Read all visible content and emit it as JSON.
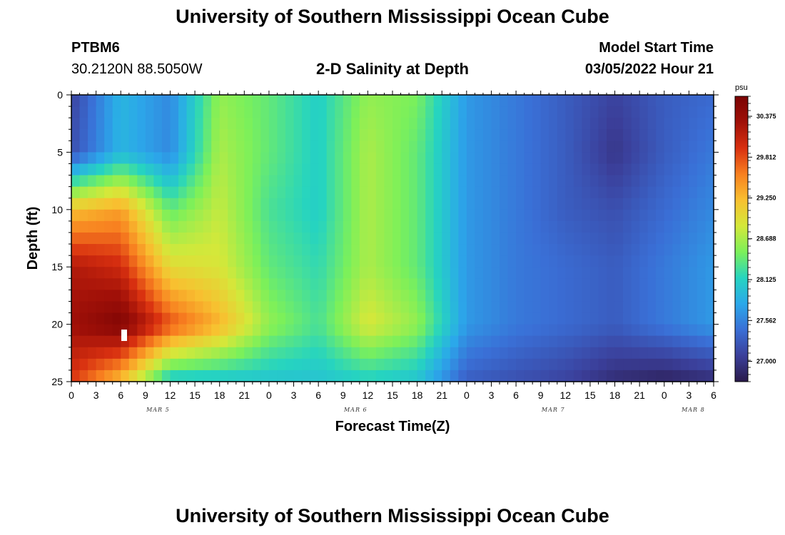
{
  "header": {
    "title": "University of Southern Mississippi Ocean Cube",
    "station": "PTBM6",
    "coords": "30.2120N  88.5050W",
    "plot_title": "2-D Salinity at Depth",
    "start_label": "Model Start Time",
    "start_value": "03/05/2022 Hour 21"
  },
  "footer": {
    "title": "University of Southern Mississippi Ocean Cube"
  },
  "chart_data": {
    "type": "heatmap",
    "title": "2-D Salinity at Depth",
    "xlabel": "Forecast Time(Z)",
    "ylabel": "Depth (ft)",
    "x_range_hours": [
      0,
      78
    ],
    "x_tick_labels": [
      "0",
      "3",
      "6",
      "9",
      "12",
      "15",
      "18",
      "21",
      "0",
      "3",
      "6",
      "9",
      "12",
      "15",
      "18",
      "21",
      "0",
      "3",
      "6",
      "9",
      "12",
      "15",
      "18",
      "21",
      "0",
      "3",
      "6"
    ],
    "date_labels": [
      {
        "text": "MAR 5",
        "hour": 10
      },
      {
        "text": "MAR 6",
        "hour": 34
      },
      {
        "text": "MAR 7",
        "hour": 58
      },
      {
        "text": "MAR 8",
        "hour": 75
      }
    ],
    "y_range_ft": [
      0,
      25
    ],
    "y_tick_labels": [
      "0",
      "5",
      "10",
      "15",
      "20",
      "25"
    ],
    "colorbar": {
      "unit": "psu",
      "min": 26.72,
      "max": 30.65,
      "ticks": [
        "30.375",
        "29.812",
        "29.250",
        "28.688",
        "28.125",
        "27.562",
        "27.000"
      ],
      "colors": [
        "#2a1a4a",
        "#3b3f9a",
        "#3a6fd6",
        "#2ba8ea",
        "#26d4c0",
        "#7cf05a",
        "#d4e83a",
        "#f8c030",
        "#f88020",
        "#d83010",
        "#a01008",
        "#7a0404"
      ]
    },
    "salinity_samples_psu": {
      "depth_ft": [
        0,
        5,
        10,
        15,
        20,
        25
      ],
      "hour": [
        0,
        6,
        12,
        18,
        24,
        30,
        36,
        42,
        48,
        54,
        60,
        66,
        72,
        78
      ],
      "values": [
        [
          27.1,
          27.9,
          27.6,
          28.6,
          28.4,
          28.1,
          28.6,
          28.5,
          27.7,
          27.5,
          27.3,
          27.1,
          27.3,
          27.4
        ],
        [
          27.2,
          27.9,
          27.6,
          28.7,
          28.4,
          28.1,
          28.7,
          28.4,
          27.7,
          27.5,
          27.3,
          27.0,
          27.3,
          27.5
        ],
        [
          29.2,
          29.4,
          28.4,
          28.8,
          28.3,
          28.1,
          28.7,
          28.4,
          27.7,
          27.5,
          27.3,
          27.2,
          27.4,
          27.6
        ],
        [
          30.2,
          30.0,
          29.0,
          28.9,
          28.4,
          28.2,
          28.7,
          28.4,
          27.7,
          27.5,
          27.4,
          27.3,
          27.5,
          27.7
        ],
        [
          30.3,
          30.6,
          29.8,
          29.3,
          28.6,
          28.3,
          28.9,
          28.6,
          27.7,
          27.5,
          27.4,
          27.3,
          27.5,
          27.7
        ],
        [
          29.9,
          29.2,
          28.0,
          28.0,
          28.0,
          28.0,
          28.1,
          28.0,
          27.3,
          27.2,
          27.1,
          26.9,
          26.8,
          26.9
        ]
      ]
    }
  }
}
